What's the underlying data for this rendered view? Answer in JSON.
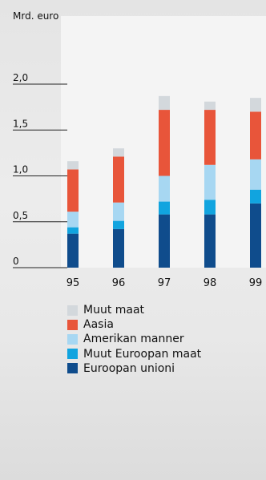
{
  "chart_data": {
    "type": "bar",
    "stacked": true,
    "unit_label": "Mrd. euro",
    "categories": [
      "95",
      "96",
      "97",
      "98",
      "99"
    ],
    "ylim": [
      0,
      2.0
    ],
    "y_ticks": [
      {
        "value": 0,
        "label": "0"
      },
      {
        "value": 0.5,
        "label": "0,5"
      },
      {
        "value": 1.0,
        "label": "1,0"
      },
      {
        "value": 1.5,
        "label": "1,5"
      },
      {
        "value": 2.0,
        "label": "2,0"
      }
    ],
    "series": [
      {
        "name": "Euroopan unioni",
        "color": "#0f4c8c",
        "values": [
          0.37,
          0.42,
          0.58,
          0.58,
          0.7
        ]
      },
      {
        "name": "Muut Euroopan maat",
        "color": "#11a4df",
        "values": [
          0.07,
          0.09,
          0.14,
          0.16,
          0.15
        ]
      },
      {
        "name": "Amerikan manner",
        "color": "#a7d7f2",
        "values": [
          0.17,
          0.2,
          0.28,
          0.38,
          0.33
        ]
      },
      {
        "name": "Aasia",
        "color": "#e8553a",
        "values": [
          0.46,
          0.5,
          0.72,
          0.6,
          0.52
        ]
      },
      {
        "name": "Muut maat",
        "color": "#d3d8dc",
        "values": [
          0.09,
          0.09,
          0.15,
          0.09,
          0.15
        ]
      }
    ],
    "legend_order": [
      4,
      3,
      2,
      1,
      0
    ],
    "legend_position": "bottom"
  }
}
